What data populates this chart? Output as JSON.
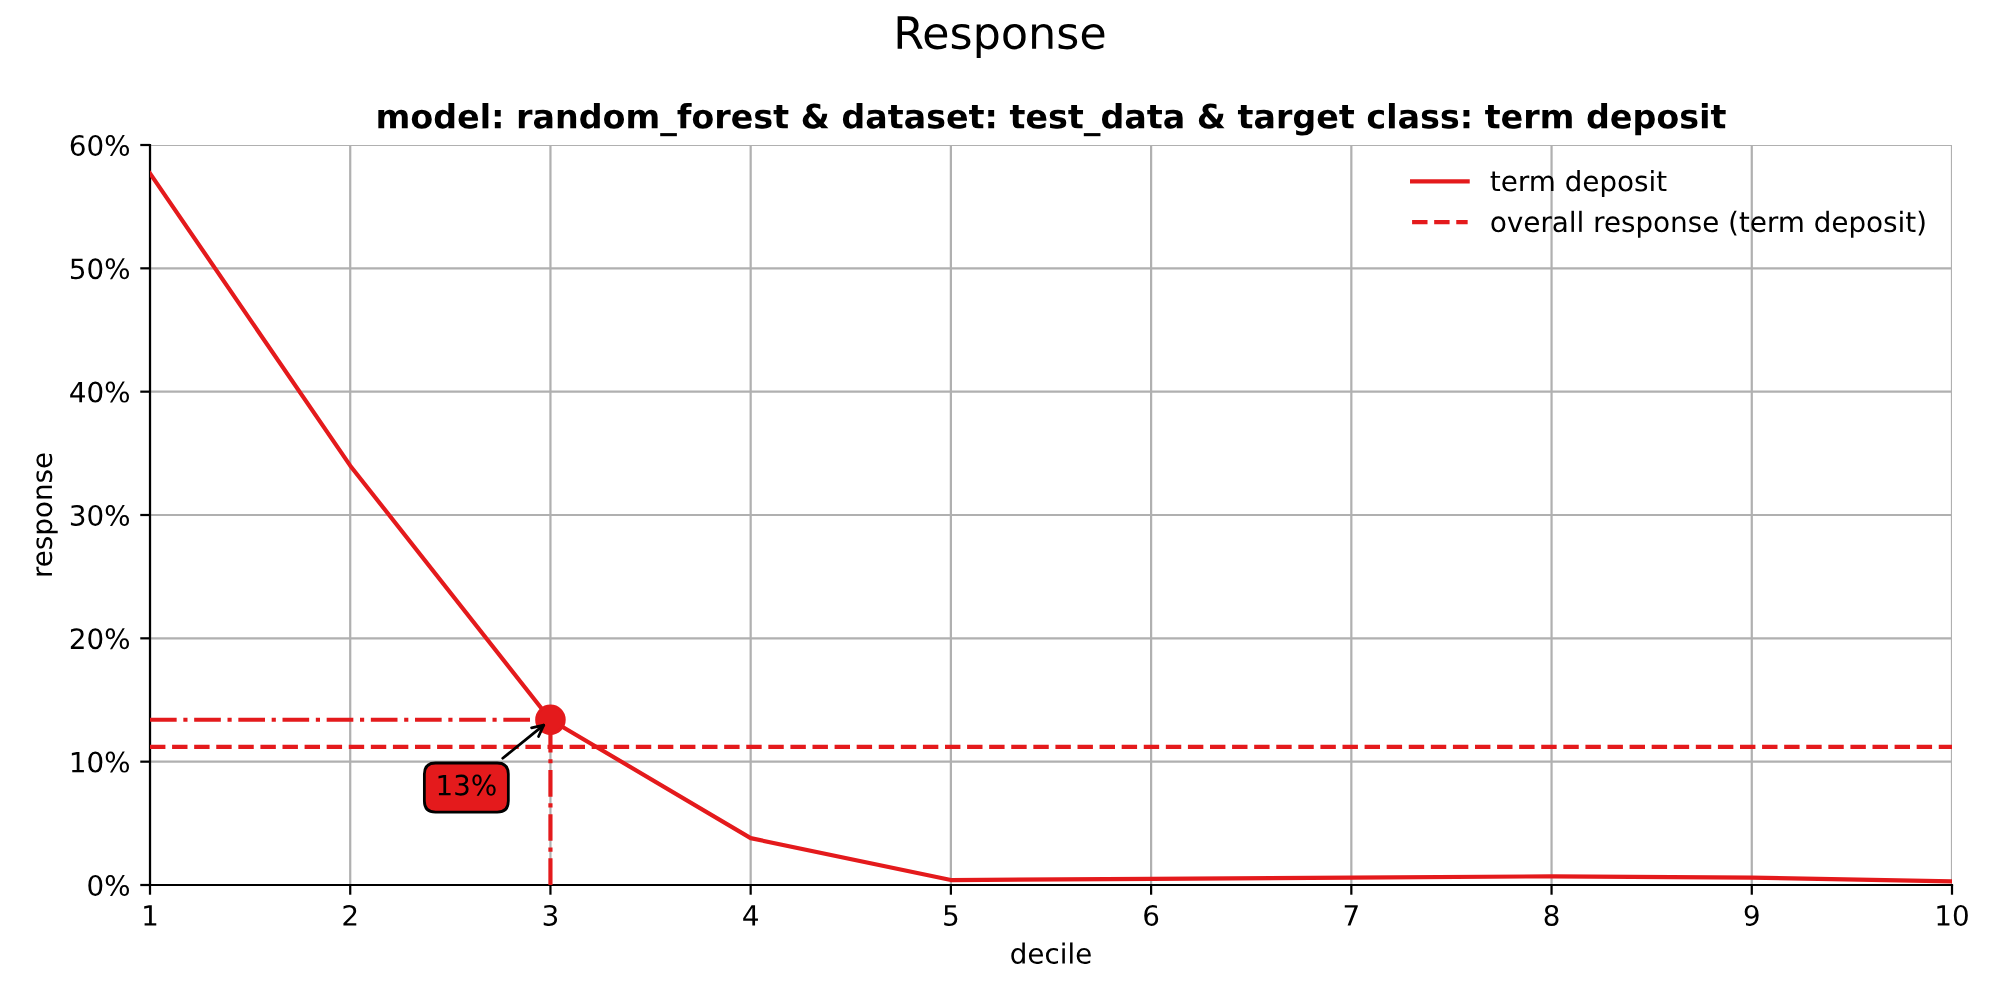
{
  "chart_data": {
    "type": "line",
    "title": "Response",
    "subtitle": "model: random_forest & dataset: test_data & target class: term deposit",
    "xlabel": "decile",
    "ylabel": "response",
    "x": [
      1,
      2,
      3,
      4,
      5,
      6,
      7,
      8,
      9,
      10
    ],
    "series": [
      {
        "name": "term deposit",
        "color": "#e41a1c",
        "values": [
          57.7,
          34.0,
          13.4,
          3.8,
          0.4,
          0.5,
          0.6,
          0.7,
          0.6,
          0.3
        ]
      },
      {
        "name": "overall response (term deposit)",
        "color": "#e41a1c",
        "line_style": "dashed",
        "values": [
          11.2,
          11.2,
          11.2,
          11.2,
          11.2,
          11.2,
          11.2,
          11.2,
          11.2,
          11.2
        ]
      }
    ],
    "ref_lines": [
      {
        "axis": "y",
        "value": 13.4,
        "color": "#e41a1c",
        "line_style": "dashdot"
      },
      {
        "axis": "x",
        "value": 3,
        "color": "#e41a1c",
        "line_style": "dashdot"
      }
    ],
    "annotations": [
      {
        "text": "13%",
        "x": 3,
        "y": 13.4
      }
    ],
    "xlim": [
      1,
      10
    ],
    "xticks": [
      1,
      2,
      3,
      4,
      5,
      6,
      7,
      8,
      9,
      10
    ],
    "ylim": [
      0,
      60
    ],
    "yticks": [
      {
        "value": 0,
        "label": "0%"
      },
      {
        "value": 10,
        "label": "10%"
      },
      {
        "value": 20,
        "label": "20%"
      },
      {
        "value": 30,
        "label": "30%"
      },
      {
        "value": 40,
        "label": "40%"
      },
      {
        "value": 50,
        "label": "50%"
      },
      {
        "value": 60,
        "label": "60%"
      }
    ],
    "grid": true,
    "legend": "top right"
  }
}
